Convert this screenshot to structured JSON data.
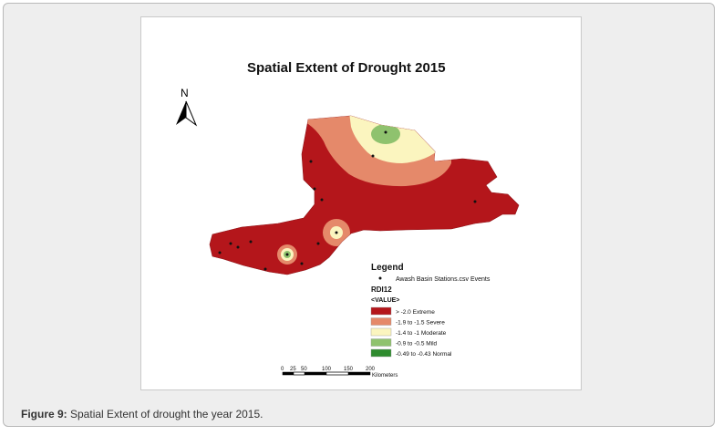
{
  "map": {
    "title": "Spatial Extent of Drought 2015",
    "north_label": "N",
    "legend": {
      "heading": "Legend",
      "stations_label": "Awash Basin Stations.csv Events",
      "layer_name": "RDI12",
      "value_label": "<VALUE>",
      "classes": [
        {
          "label": "> -2.0 Extreme",
          "color": "#b4161b"
        },
        {
          "label": "-1.9  to  -1.5 Severe",
          "color": "#e5896a"
        },
        {
          "label": "-1.4  to -1 Moderate",
          "color": "#fbf5bf"
        },
        {
          "label": "-0.9 to  -0.5 Mild",
          "color": "#8fc26e"
        },
        {
          "label": "-0.49 to -0.43 Normal",
          "color": "#2e8b2e"
        }
      ]
    },
    "scalebar": {
      "ticks": [
        "0",
        "25",
        "50",
        "100",
        "150",
        "200"
      ],
      "unit": "Kilometers"
    }
  },
  "caption": {
    "label": "Figure 9:",
    "text": " Spatial Extent of drought the year 2015."
  }
}
